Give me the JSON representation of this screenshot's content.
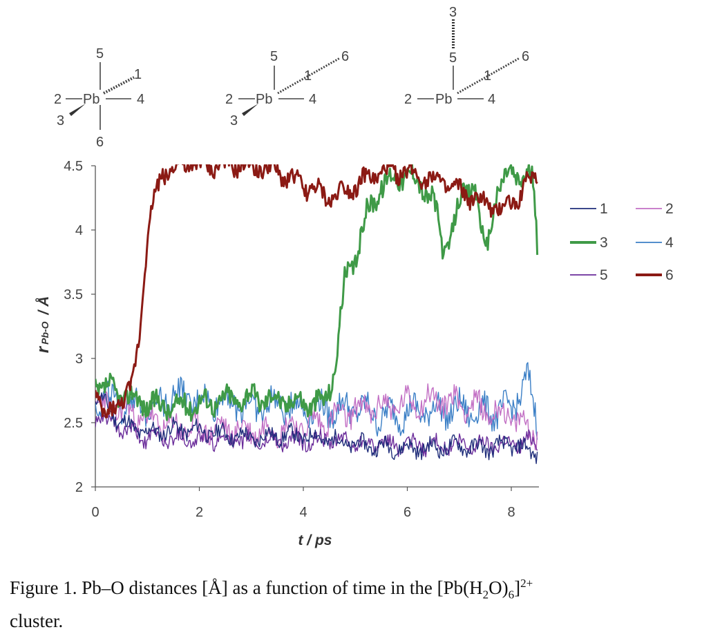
{
  "diagrams": [
    {
      "center": "Pb",
      "labels": [
        "5",
        "2",
        "4",
        "3",
        "1",
        "6"
      ]
    },
    {
      "center": "Pb",
      "labels": [
        "5",
        "2",
        "4",
        "3",
        "1",
        "6"
      ]
    },
    {
      "center": "Pb",
      "labels": [
        "3",
        "5",
        "2",
        "4",
        "1",
        "6"
      ]
    }
  ],
  "chart_data": {
    "type": "line",
    "title": "",
    "xlabel": "t / ps",
    "ylabel": "r Pb-O / Å",
    "xlim": [
      0,
      8.5
    ],
    "ylim": [
      2,
      4.5
    ],
    "xticks": [
      "0",
      "2",
      "4",
      "6",
      "8"
    ],
    "yticks": [
      "2",
      "2.5",
      "3",
      "3.5",
      "4",
      "4.5"
    ],
    "legend_position": "right",
    "grid": false,
    "series": [
      {
        "name": "1",
        "color": "#1f2d7a",
        "width": "thin",
        "points": [
          [
            0,
            2.72
          ],
          [
            0.5,
            2.5
          ],
          [
            1,
            2.42
          ],
          [
            1.5,
            2.45
          ],
          [
            2,
            2.44
          ],
          [
            2.5,
            2.41
          ],
          [
            3,
            2.38
          ],
          [
            3.5,
            2.4
          ],
          [
            4,
            2.4
          ],
          [
            4.5,
            2.37
          ],
          [
            5,
            2.33
          ],
          [
            5.5,
            2.31
          ],
          [
            6,
            2.3
          ],
          [
            6.5,
            2.3
          ],
          [
            7,
            2.32
          ],
          [
            7.5,
            2.3
          ],
          [
            8,
            2.33
          ],
          [
            8.5,
            2.26
          ]
        ],
        "noise": 0.09,
        "seed": 11
      },
      {
        "name": "2",
        "color": "#c26fc4",
        "width": "thin",
        "points": [
          [
            0,
            2.65
          ],
          [
            0.5,
            2.6
          ],
          [
            1,
            2.52
          ],
          [
            1.5,
            2.47
          ],
          [
            2,
            2.45
          ],
          [
            2.5,
            2.45
          ],
          [
            3,
            2.44
          ],
          [
            3.5,
            2.45
          ],
          [
            4,
            2.48
          ],
          [
            4.5,
            2.52
          ],
          [
            5,
            2.6
          ],
          [
            5.5,
            2.62
          ],
          [
            6,
            2.65
          ],
          [
            6.5,
            2.68
          ],
          [
            7,
            2.66
          ],
          [
            7.5,
            2.6
          ],
          [
            8,
            2.55
          ],
          [
            8.5,
            2.4
          ]
        ],
        "noise": 0.14,
        "seed": 23
      },
      {
        "name": "3",
        "color": "#3f9a47",
        "width": "thick",
        "points": [
          [
            0,
            2.8
          ],
          [
            0.5,
            2.72
          ],
          [
            1,
            2.65
          ],
          [
            1.5,
            2.62
          ],
          [
            2,
            2.65
          ],
          [
            2.5,
            2.68
          ],
          [
            3,
            2.7
          ],
          [
            3.5,
            2.68
          ],
          [
            4,
            2.66
          ],
          [
            4.4,
            2.65
          ],
          [
            4.6,
            2.9
          ],
          [
            4.8,
            3.6
          ],
          [
            5,
            3.78
          ],
          [
            5.2,
            4.1
          ],
          [
            5.5,
            4.35
          ],
          [
            6,
            4.45
          ],
          [
            6.5,
            4.25
          ],
          [
            6.7,
            3.8
          ],
          [
            7,
            4.2
          ],
          [
            7.3,
            4.4
          ],
          [
            7.5,
            3.75
          ],
          [
            7.7,
            4.3
          ],
          [
            8,
            4.45
          ],
          [
            8.4,
            4.4
          ],
          [
            8.5,
            3.9
          ]
        ],
        "noise": 0.12,
        "seed": 37
      },
      {
        "name": "4",
        "color": "#3b7fc6",
        "width": "thin",
        "points": [
          [
            0,
            2.7
          ],
          [
            0.5,
            2.65
          ],
          [
            1,
            2.62
          ],
          [
            1.5,
            2.72
          ],
          [
            2,
            2.66
          ],
          [
            2.5,
            2.68
          ],
          [
            3,
            2.62
          ],
          [
            3.5,
            2.64
          ],
          [
            4,
            2.62
          ],
          [
            4.5,
            2.6
          ],
          [
            5,
            2.62
          ],
          [
            5.5,
            2.55
          ],
          [
            6,
            2.58
          ],
          [
            6.5,
            2.6
          ],
          [
            7,
            2.6
          ],
          [
            7.5,
            2.58
          ],
          [
            8,
            2.6
          ],
          [
            8.3,
            2.85
          ],
          [
            8.5,
            2.5
          ]
        ],
        "noise": 0.16,
        "seed": 49
      },
      {
        "name": "5",
        "color": "#6a2c9a",
        "width": "thin",
        "points": [
          [
            0,
            2.55
          ],
          [
            0.5,
            2.45
          ],
          [
            1,
            2.38
          ],
          [
            1.5,
            2.38
          ],
          [
            2,
            2.36
          ],
          [
            2.5,
            2.37
          ],
          [
            3,
            2.35
          ],
          [
            3.5,
            2.36
          ],
          [
            4,
            2.35
          ],
          [
            4.5,
            2.36
          ],
          [
            5,
            2.35
          ],
          [
            5.5,
            2.33
          ],
          [
            6,
            2.32
          ],
          [
            6.5,
            2.33
          ],
          [
            7,
            2.32
          ],
          [
            7.5,
            2.33
          ],
          [
            8,
            2.34
          ],
          [
            8.5,
            2.36
          ]
        ],
        "noise": 0.09,
        "seed": 61
      },
      {
        "name": "6",
        "color": "#8b1a14",
        "width": "thick",
        "points": [
          [
            0,
            2.78
          ],
          [
            0.2,
            2.5
          ],
          [
            0.4,
            2.65
          ],
          [
            0.7,
            2.75
          ],
          [
            0.85,
            3.2
          ],
          [
            0.95,
            3.75
          ],
          [
            1.1,
            4.2
          ],
          [
            1.3,
            4.45
          ],
          [
            1.6,
            4.5
          ],
          [
            2,
            4.5
          ],
          [
            3,
            4.5
          ],
          [
            3.5,
            4.45
          ],
          [
            4,
            4.35
          ],
          [
            4.5,
            4.25
          ],
          [
            5,
            4.35
          ],
          [
            5.5,
            4.45
          ],
          [
            6,
            4.45
          ],
          [
            6.5,
            4.4
          ],
          [
            7,
            4.3
          ],
          [
            7.5,
            4.2
          ],
          [
            7.8,
            4.15
          ],
          [
            8.1,
            4.25
          ],
          [
            8.5,
            4.45
          ]
        ],
        "noise": 0.1,
        "seed": 73
      }
    ]
  },
  "caption": {
    "prefix": "Figure 1. Pb–O  distances [Å]  as  a  function  of  time  in  the  ",
    "formula_a": "[Pb(H",
    "sub_2": "2",
    "formula_b": "O)",
    "sub_6": "6",
    "formula_c": "]",
    "sup_charge": "2+",
    "line2": "cluster."
  }
}
